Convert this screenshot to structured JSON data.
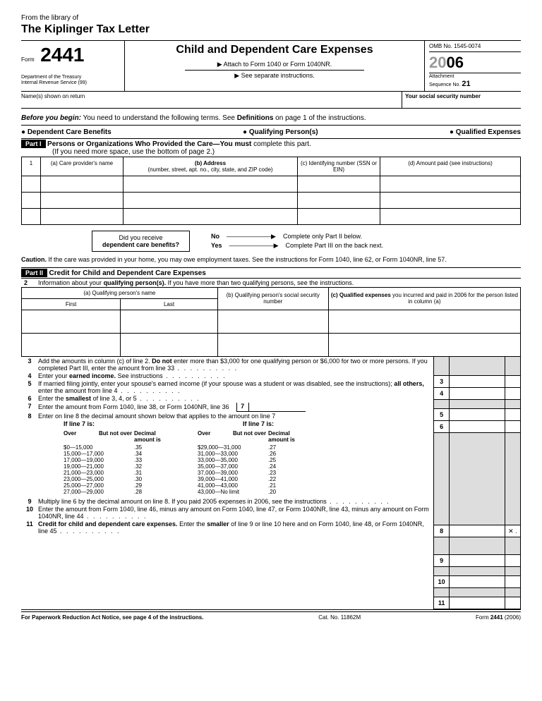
{
  "library": {
    "from": "From the library of",
    "name": "The Kiplinger Tax Letter"
  },
  "header": {
    "form_label": "Form",
    "form_number": "2441",
    "dept1": "Department of the Treasury",
    "dept2": "Internal Revenue Service   (99)",
    "title": "Child and Dependent Care Expenses",
    "sub1": "▶ Attach to Form 1040 or Form 1040NR.",
    "sub2": "▶ See separate instructions.",
    "omb": "OMB No. 1545-0074",
    "year_gray": "20",
    "year_bold": "06",
    "attach": "Attachment",
    "seq_label": "Sequence No.",
    "seq_num": "21"
  },
  "name_row": {
    "left": "Name(s) shown on return",
    "right": "Your social security number"
  },
  "before": {
    "lead": "Before you begin:",
    "text": " You need to understand the following terms. See ",
    "bold": "Definitions",
    "tail": " on page 1 of the instructions."
  },
  "bullets": {
    "b1": "● Dependent Care Benefits",
    "b2": "● Qualifying Person(s)",
    "b3": "● Qualified Expenses"
  },
  "part1": {
    "label": "Part I",
    "title": "Persons or Organizations Who Provided the Care—",
    "title2": "You must",
    "title3": " complete this part.",
    "sub": "(If you need more space, use the bottom of page 2.)",
    "num": "1",
    "ca": "(a) Care provider's name",
    "cb": "(b) Address",
    "cb2": "(number, street, apt. no., city, state, and ZIP code)",
    "cc": "(c) Identifying number (SSN or EIN)",
    "cd": "(d) Amount paid (see instructions)"
  },
  "benefits": {
    "q1": "Did you receive",
    "q2": "dependent care benefits?",
    "no": "No",
    "no_text": "Complete only Part II below.",
    "yes": "Yes",
    "yes_text": "Complete Part III on the back next."
  },
  "caution": {
    "lead": "Caution.",
    "text": " If the care was provided in your home, you may owe employment taxes. See the instructions for Form 1040, line 62, or Form 1040NR, line 57."
  },
  "part2": {
    "label": "Part II",
    "title": "Credit for Child and Dependent Care Expenses",
    "l2num": "2",
    "l2text": "Information about your ",
    "l2bold": "qualifying person(s).",
    "l2tail": " If you have more than two qualifying persons, see the instructions.",
    "ca": "(a) Qualifying person's name",
    "first": "First",
    "last": "Last",
    "cb": "(b) Qualifying person's social security number",
    "cc": "(c) Qualified expenses",
    "cc2": " you incurred and paid in 2006 for the person listed in column (a)"
  },
  "lines": {
    "l3n": "3",
    "l3": "Add the amounts in column (c) of line 2. <b>Do not</b> enter more than $3,000 for one qualifying person or $6,000 for two or more persons. If you completed Part III, enter the amount from line 33",
    "l4n": "4",
    "l4": "Enter your <b>earned income.</b> See instructions",
    "l5n": "5",
    "l5": "If married filing jointly, enter your spouse's earned income (if your spouse was a student or was disabled, see the instructions); <b>all others,</b> enter the amount from line 4",
    "l6n": "6",
    "l6": "Enter the <b>smallest</b> of line 3, 4, or 5",
    "l7n": "7",
    "l7a": "Enter the amount from Form 1040, line 38, or Form 1040NR, line 36",
    "l7box": "7",
    "l8n": "8",
    "l8": "Enter on line 8 the decimal amount shown below that applies to the amount on line 7",
    "head_if": "If line 7 is:",
    "h_over": "Over",
    "h_notover": "But not over",
    "h_dec": "Decimal amount is",
    "l9n": "9",
    "l9": "Multiply line 6 by the decimal amount on line 8. If you paid 2005 expenses in 2006, see the instructions",
    "l10n": "10",
    "l10": "Enter the amount from Form 1040, line 46, minus any amount on Form 1040, line 47, or Form 1040NR, line 43, minus any amount on Form 1040NR, line 44",
    "l11n": "11",
    "l11": "<b>Credit for child and dependent care expenses.</b> Enter the <b>smaller</b> of line 9 or line 10 here and on Form 1040, line 48, or Form 1040NR, line 45",
    "mult": "✕ ."
  },
  "decimal_table": {
    "left": [
      [
        "$0—15,000",
        ".35"
      ],
      [
        "15,000—17,000",
        ".34"
      ],
      [
        "17,000—19,000",
        ".33"
      ],
      [
        "19,000—21,000",
        ".32"
      ],
      [
        "21,000—23,000",
        ".31"
      ],
      [
        "23,000—25,000",
        ".30"
      ],
      [
        "25,000—27,000",
        ".29"
      ],
      [
        "27,000—29,000",
        ".28"
      ]
    ],
    "right": [
      [
        "$29,000—31,000",
        ".27"
      ],
      [
        "31,000—33,000",
        ".26"
      ],
      [
        "33,000—35,000",
        ".25"
      ],
      [
        "35,000—37,000",
        ".24"
      ],
      [
        "37,000—39,000",
        ".23"
      ],
      [
        "39,000—41,000",
        ".22"
      ],
      [
        "41,000—43,000",
        ".21"
      ],
      [
        "43,000—No limit",
        ".20"
      ]
    ]
  },
  "footer": {
    "left": "For Paperwork Reduction Act Notice, see page 4 of the instructions.",
    "cat": "Cat. No. 11862M",
    "form": "Form",
    "num": "2441",
    "yr": "(2006)"
  }
}
